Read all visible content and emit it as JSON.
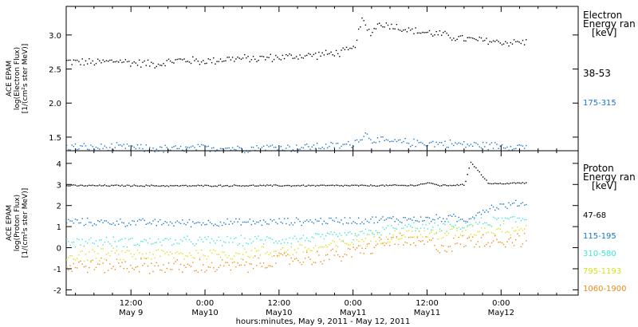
{
  "x_axis": {
    "ticks": [
      {
        "label": "12:00",
        "sublabel": "May 9",
        "hours": 12
      },
      {
        "label": "0:00",
        "sublabel": "May10",
        "hours": 24
      },
      {
        "label": "12:00",
        "sublabel": "May10",
        "hours": 36
      },
      {
        "label": "0:00",
        "sublabel": "May11",
        "hours": 48
      },
      {
        "label": "12:00",
        "sublabel": "May11",
        "hours": 60
      },
      {
        "label": "0:00",
        "sublabel": "May12",
        "hours": 72
      }
    ],
    "caption": "hours:minutes, May  9, 2011 - May 12, 2011"
  },
  "chart_data": [
    {
      "type": "scatter",
      "ylabel": [
        "ACE EPAM",
        "log(Electron Flux)",
        "[1/(cm²s ster MeV)]"
      ],
      "ylim": [
        1.3,
        3.42
      ],
      "xlim": [
        1.5,
        84.5
      ],
      "yticks": [
        1.5,
        2.0,
        2.5,
        3.0
      ],
      "ytick_labels": [
        "1.5",
        "2.0",
        "2.5",
        "3.0"
      ],
      "legend_title": [
        "Electron",
        "Energy ran",
        "[keV]"
      ],
      "series": [
        {
          "name": "38-53",
          "color": "#000000",
          "x": [
            1.5,
            6,
            10,
            12,
            16,
            20,
            24,
            28,
            32,
            36,
            40,
            44,
            46,
            48,
            49.5,
            50,
            51,
            52,
            54,
            56,
            58,
            60,
            62,
            64,
            66,
            68,
            70,
            72,
            74,
            76
          ],
          "y": [
            2.62,
            2.6,
            2.63,
            2.6,
            2.58,
            2.64,
            2.62,
            2.66,
            2.66,
            2.68,
            2.7,
            2.73,
            2.75,
            2.8,
            3.25,
            3.1,
            3.05,
            3.17,
            3.15,
            3.1,
            3.06,
            3.04,
            3.02,
            2.98,
            2.95,
            2.93,
            2.92,
            2.9,
            2.9,
            2.9
          ]
        },
        {
          "name": "175-315",
          "color": "#1874cd",
          "x": [
            1.5,
            6,
            10,
            14,
            18,
            22,
            26,
            30,
            34,
            38,
            42,
            46,
            48,
            50,
            51,
            52,
            56,
            60,
            64,
            68,
            72,
            76
          ],
          "y": [
            1.37,
            1.35,
            1.36,
            1.34,
            1.33,
            1.34,
            1.35,
            1.34,
            1.36,
            1.35,
            1.37,
            1.38,
            1.42,
            1.55,
            1.48,
            1.45,
            1.43,
            1.42,
            1.41,
            1.39,
            1.38,
            1.37
          ]
        }
      ]
    },
    {
      "type": "scatter",
      "ylabel": [
        "ACE EPAM",
        "log(Proton Flux)",
        "[1/(cm²s ster MeV)]"
      ],
      "ylim": [
        -2.25,
        4.6
      ],
      "xlim": [
        1.5,
        84.5
      ],
      "yticks": [
        -2,
        -1,
        0,
        1,
        2,
        3,
        4
      ],
      "ytick_labels": [
        "-2",
        "-1",
        "0",
        "1",
        "2",
        "3",
        "4"
      ],
      "legend_title": [
        "Proton",
        "Energy ran",
        "[keV]"
      ],
      "series": [
        {
          "name": "47-68",
          "color": "#000000",
          "x": [
            1.5,
            10,
            20,
            30,
            38,
            40,
            42,
            50,
            58,
            60,
            62,
            66,
            67,
            70,
            76
          ],
          "y": [
            2.97,
            2.97,
            2.96,
            2.97,
            2.97,
            2.97,
            2.97,
            2.97,
            2.98,
            3.1,
            2.98,
            3.0,
            4.1,
            3.05,
            3.1
          ]
        },
        {
          "name": "115-195",
          "color": "#1874cd",
          "x": [
            1.5,
            10,
            20,
            30,
            36,
            44,
            50,
            56,
            60,
            64,
            66,
            68,
            70,
            72,
            76
          ],
          "y": [
            1.25,
            1.22,
            1.2,
            1.22,
            1.25,
            1.3,
            1.33,
            1.38,
            1.38,
            1.45,
            1.3,
            1.65,
            1.9,
            2.0,
            2.15
          ]
        },
        {
          "name": "310-580",
          "color": "#3ee6d6",
          "x": [
            1.5,
            10,
            20,
            30,
            36,
            42,
            48,
            54,
            58,
            62,
            66,
            70,
            76
          ],
          "y": [
            0.3,
            0.3,
            0.32,
            0.35,
            0.4,
            0.5,
            0.6,
            0.9,
            1.0,
            0.95,
            1.1,
            1.25,
            1.4
          ]
        },
        {
          "name": "795-1193",
          "color": "#d8e21a",
          "x": [
            1.5,
            10,
            20,
            30,
            36,
            42,
            48,
            54,
            58,
            62,
            66,
            70,
            76
          ],
          "y": [
            -0.35,
            -0.3,
            -0.3,
            -0.25,
            -0.15,
            0.0,
            0.3,
            0.6,
            0.7,
            0.65,
            0.8,
            0.9,
            0.95
          ]
        },
        {
          "name": "1060-1900",
          "color": "#ee8a18",
          "x": [
            1.5,
            10,
            20,
            30,
            36,
            40,
            44,
            48,
            52,
            55,
            57,
            60,
            62,
            66,
            70,
            76
          ],
          "y": [
            -0.85,
            -0.8,
            -0.9,
            -0.85,
            -0.55,
            -0.5,
            -0.4,
            -0.2,
            0.15,
            0.45,
            0.2,
            0.3,
            0.05,
            0.3,
            0.4,
            0.4
          ]
        }
      ]
    }
  ]
}
